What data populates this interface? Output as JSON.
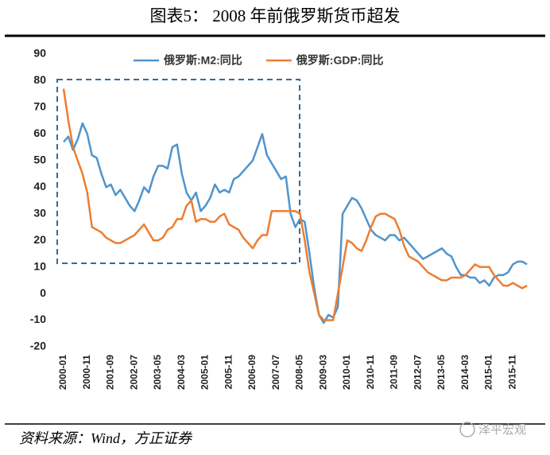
{
  "chart_data": {
    "type": "line",
    "title": "图表5： 2008 年前俄罗斯货币超发",
    "source": "资料来源：Wind，方正证券",
    "watermark": "泽平宏观",
    "categories": [
      "2000-01",
      null,
      null,
      null,
      null,
      "2000-11",
      null,
      null,
      null,
      null,
      "2001-09",
      null,
      null,
      null,
      null,
      "2002-07",
      null,
      null,
      null,
      null,
      "2003-05",
      null,
      null,
      null,
      null,
      "2004-03",
      null,
      null,
      null,
      null,
      "2005-01",
      null,
      null,
      null,
      null,
      "2005-11",
      null,
      null,
      null,
      null,
      "2006-09",
      null,
      null,
      null,
      null,
      "2007-07",
      null,
      null,
      null,
      null,
      "2008-05",
      null,
      null,
      null,
      null,
      "2009-03",
      null,
      null,
      null,
      null,
      "2010-01",
      null,
      null,
      null,
      null,
      "2010-11",
      null,
      null,
      null,
      null,
      "2011-09",
      null,
      null,
      null,
      null,
      "2012-07",
      null,
      null,
      null,
      null,
      "2013-05",
      null,
      null,
      null,
      null,
      "2014-03",
      null,
      null,
      null,
      null,
      "2015-01",
      null,
      null,
      null,
      null,
      "2015-11",
      null,
      null,
      null
    ],
    "series": [
      {
        "name": "俄罗斯:M2:同比",
        "color": "#4f94cd",
        "values": [
          57,
          59,
          54,
          58,
          64,
          60,
          52,
          51,
          45,
          40,
          41,
          37,
          39,
          36,
          33,
          31,
          35,
          40,
          38,
          44,
          48,
          48,
          47,
          55,
          56,
          45,
          38,
          35,
          38,
          31,
          33,
          36,
          41,
          38,
          39,
          38,
          43,
          44,
          46,
          48,
          50,
          55,
          60,
          52,
          49,
          46,
          43,
          44,
          30,
          25,
          28,
          27,
          15,
          2,
          -8,
          -11,
          -8,
          -9,
          -5,
          30,
          33,
          36,
          35,
          32,
          28,
          24,
          22,
          21,
          20,
          22,
          22,
          20,
          21,
          19,
          17,
          15,
          13,
          14,
          15,
          16,
          17,
          15,
          14,
          10,
          7,
          7,
          6,
          6,
          4,
          5,
          3,
          6,
          7,
          7,
          8,
          11,
          12,
          12,
          11
        ]
      },
      {
        "name": "俄罗斯:GDP:同比",
        "color": "#ed7d31",
        "values": [
          77,
          65,
          55,
          50,
          45,
          38,
          25,
          24,
          23,
          21,
          20,
          19,
          19,
          20,
          21,
          22,
          24,
          26,
          23,
          20,
          20,
          21,
          24,
          25,
          28,
          28,
          33,
          35,
          27,
          28,
          28,
          27,
          27,
          29,
          30,
          26,
          25,
          24,
          21,
          19,
          17,
          20,
          22,
          22,
          31,
          31,
          31,
          31,
          31,
          31,
          30,
          20,
          8,
          0,
          -8,
          -10,
          -10,
          -10,
          0,
          10,
          20,
          19,
          17,
          16,
          20,
          25,
          29,
          30,
          30,
          29,
          28,
          24,
          18,
          14,
          13,
          12,
          10,
          8,
          7,
          6,
          5,
          5,
          6,
          6,
          6,
          7,
          9,
          11,
          10,
          10,
          10,
          7,
          5,
          3,
          3,
          4,
          3,
          2,
          3
        ]
      }
    ],
    "ylim": [
      -20,
      90
    ],
    "yticks": [
      -20,
      -10,
      0,
      10,
      20,
      30,
      40,
      50,
      60,
      70,
      80,
      90
    ],
    "grid": false,
    "legend": "top"
  }
}
